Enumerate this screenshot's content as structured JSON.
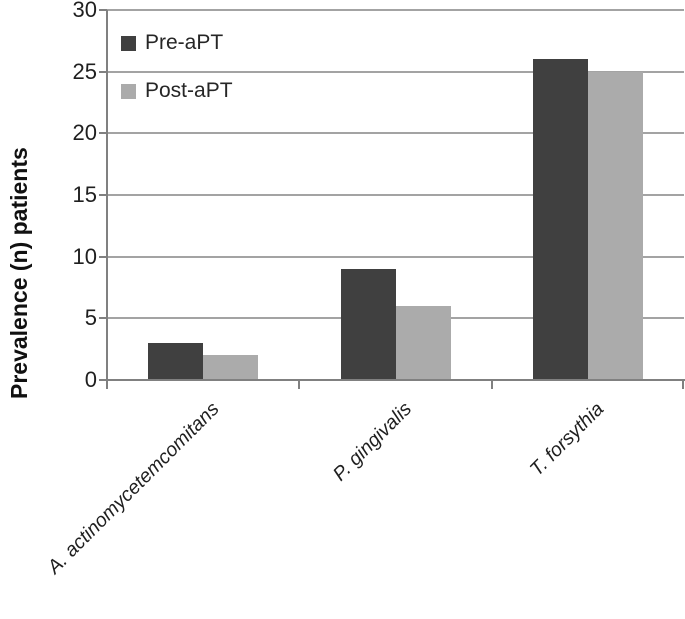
{
  "chart_data": {
    "type": "bar",
    "title": "",
    "ylabel": "Prevalence (n) patients",
    "xlabel": "",
    "categories": [
      "A. actinomycetemcomitans",
      "P. gingivalis",
      "T. forsythia"
    ],
    "series": [
      {
        "name": "Pre-aPT",
        "color": "#404040",
        "values": [
          3,
          9,
          26
        ]
      },
      {
        "name": "Post-aPT",
        "color": "#ababab",
        "values": [
          2,
          6,
          25
        ]
      }
    ],
    "y_ticks": [
      0,
      5,
      10,
      15,
      20,
      25,
      30
    ],
    "ylim": [
      0,
      30
    ],
    "grid": "horizontal",
    "legend_position": "top-left-inside",
    "category_label_style": "italic, rotated -45deg"
  },
  "colors": {
    "axis": "#808080",
    "grid": "#a3a3a3",
    "text": "#1f1f1f"
  }
}
